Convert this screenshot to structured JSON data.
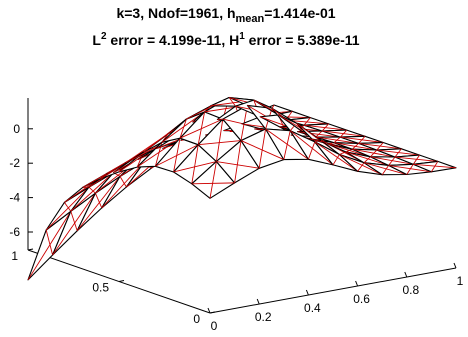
{
  "chart_data": {
    "type": "surface",
    "title_line1": {
      "prefix": "k=3, Ndof=1961, h",
      "subscript": "mean",
      "suffix": "=1.414e-01"
    },
    "title_line2": {
      "part1": "L",
      "sup1": "2",
      "part2": " error = 4.199e-11, H",
      "sup2": "1",
      "part3": " error = 5.389e-11"
    },
    "xlabel": "",
    "ylabel": "",
    "zlabel": "",
    "xlim": [
      0,
      1
    ],
    "ylim": [
      0,
      1
    ],
    "zlim": [
      -7,
      1.5
    ],
    "x_ticks": [
      "0",
      "0.2",
      "0.4",
      "0.6",
      "0.8",
      "1"
    ],
    "y_ticks": [
      "0",
      "0.5",
      "1"
    ],
    "z_ticks": [
      "-6",
      "-4",
      "-2",
      "0"
    ],
    "x_tick_values": [
      0,
      0.2,
      0.4,
      0.6,
      0.8,
      1
    ],
    "y_tick_values": [
      0,
      0.5,
      1
    ],
    "z_tick_values": [
      -6,
      -4,
      -2,
      0
    ],
    "mesh_divisions": 10,
    "grid": false,
    "colors": {
      "mesh_edges": "#000000",
      "inner_edges": "#cc0000",
      "surface_fill": "#ffffff",
      "axes": "#000000"
    }
  }
}
